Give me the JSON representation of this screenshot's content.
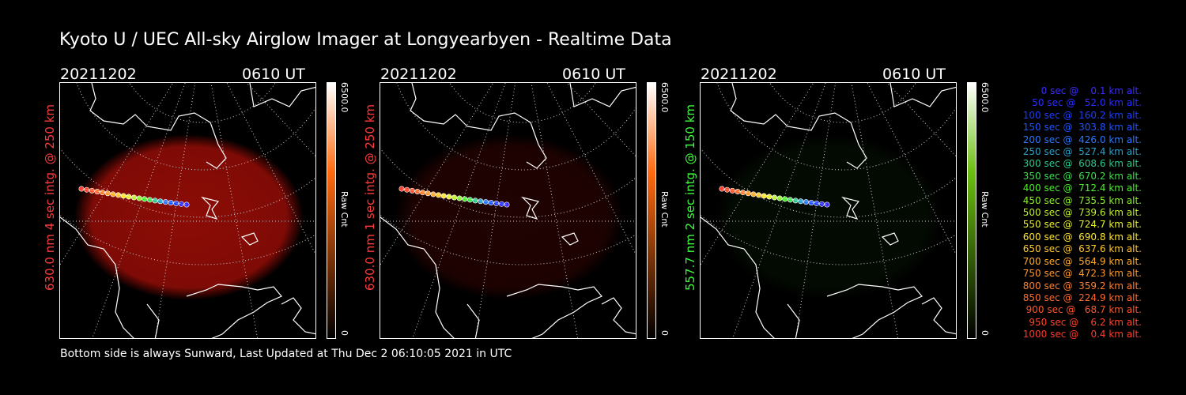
{
  "title": "Kyoto U / UEC All-sky Airglow Imager at Longyearbyen - Realtime Data",
  "footer": "Bottom side is always Sunward, Last Updated at Thu Dec  2 06:10:05 2021 in UTC",
  "panels": [
    {
      "date": "20211202",
      "time": "0610 UT",
      "ylabel": "630.0 nm 4 sec intg. @ 250 km",
      "ylabel_color": "#ff3b3b",
      "cbar_max": "6500.0",
      "cbar_unit": "Raw Cnt",
      "cbar_min": "0",
      "cbar_top": "#ffffff",
      "cbar_mid": "#ff6a10",
      "cbar_bottom": "#000000",
      "glow_color": "#b00f08",
      "glow_level": 0.8
    },
    {
      "date": "20211202",
      "time": "0610 UT",
      "ylabel": "630.0 nm 1 sec intg. @ 250 km",
      "ylabel_color": "#ff3b3b",
      "cbar_max": "6500.0",
      "cbar_unit": "Raw Cnt",
      "cbar_min": "0",
      "cbar_top": "#ffffff",
      "cbar_mid": "#ff6a10",
      "cbar_bottom": "#000000",
      "glow_color": "#b00f08",
      "glow_level": 0.18
    },
    {
      "date": "20211202",
      "time": "0610 UT",
      "ylabel": "557.7 nm 2 sec intg. @ 150 km",
      "ylabel_color": "#3cff3c",
      "cbar_max": "6500.0",
      "cbar_unit": "Raw Cnt",
      "cbar_min": "0",
      "cbar_top": "#ffffff",
      "cbar_mid": "#6abf10",
      "cbar_bottom": "#000000",
      "glow_color": "#1a5a10",
      "glow_level": 0.12
    }
  ],
  "legend": [
    {
      "text": "   0 sec @    0.1 km alt.",
      "color": "#3a2cff"
    },
    {
      "text": "  50 sec @   52.0 km alt.",
      "color": "#2a2cff"
    },
    {
      "text": " 100 sec @  160.2 km alt.",
      "color": "#1c3cff"
    },
    {
      "text": " 150 sec @  303.8 km alt.",
      "color": "#1c55ff"
    },
    {
      "text": " 200 sec @  426.0 km alt.",
      "color": "#2a78ff"
    },
    {
      "text": " 250 sec @  527.4 km alt.",
      "color": "#2aa0c8"
    },
    {
      "text": " 300 sec @  608.6 km alt.",
      "color": "#2ac88a"
    },
    {
      "text": " 350 sec @  670.2 km alt.",
      "color": "#3adf4a"
    },
    {
      "text": " 400 sec @  712.4 km alt.",
      "color": "#4aef2a"
    },
    {
      "text": " 450 sec @  735.5 km alt.",
      "color": "#8aef2a"
    },
    {
      "text": " 500 sec @  739.6 km alt.",
      "color": "#bfef2a"
    },
    {
      "text": " 550 sec @  724.7 km alt.",
      "color": "#e6ef2a"
    },
    {
      "text": " 600 sec @  690.8 km alt.",
      "color": "#ffe62a"
    },
    {
      "text": " 650 sec @  637.6 km alt.",
      "color": "#ffc82a"
    },
    {
      "text": " 700 sec @  564.9 km alt.",
      "color": "#ffac2a"
    },
    {
      "text": " 750 sec @  472.3 km alt.",
      "color": "#ff962a"
    },
    {
      "text": " 800 sec @  359.2 km alt.",
      "color": "#ff802a"
    },
    {
      "text": " 850 sec @  224.9 km alt.",
      "color": "#ff6a2a"
    },
    {
      "text": " 900 sec @   68.7 km alt.",
      "color": "#ff542a"
    },
    {
      "text": " 950 sec @    6.2 km alt.",
      "color": "#ff442a"
    },
    {
      "text": "1000 sec @    0.4 km alt.",
      "color": "#ff3a2a"
    }
  ]
}
